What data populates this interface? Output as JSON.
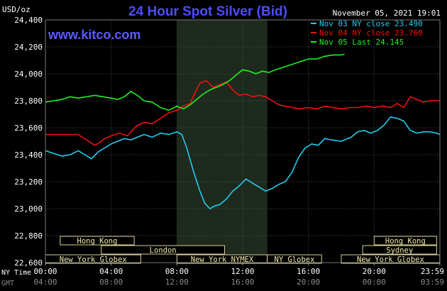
{
  "chart_data": {
    "type": "line",
    "title": "24 Hour Spot Silver (Bid)",
    "watermark": "www.kitco.com",
    "timestamp": "November 05, 2021 19:01",
    "y_unit": "USD/oz",
    "ylim": [
      22.6,
      24.4
    ],
    "y_ticks": [
      "24,400",
      "24,200",
      "24,000",
      "23,800",
      "23,600",
      "23,400",
      "23,200",
      "23,000",
      "22,800",
      "22,600"
    ],
    "x_label_ny": "NY Time",
    "x_label_gmt": "GMT",
    "x_ticks_ny": [
      "00:00",
      "04:00",
      "08:00",
      "12:00",
      "16:00",
      "20:00",
      "23:59"
    ],
    "x_ticks_gmt": [
      "04:00",
      "08:00",
      "12:00",
      "16:00",
      "20:00",
      "00:00",
      "03:59"
    ],
    "xlim_hours": [
      0,
      24
    ],
    "highlight_hours": [
      8.0,
      13.5
    ],
    "legend": [
      {
        "label": "Nov 03 NY close 23.490",
        "color": "#22ccee"
      },
      {
        "label": "Nov 04 NY close 23.760",
        "color": "#ee1111"
      },
      {
        "label": "Nov 05 Last 24.145",
        "color": "#22ee22"
      }
    ],
    "series": [
      {
        "name": "Nov 03",
        "color": "#22ccee",
        "points": [
          [
            0,
            23.43
          ],
          [
            0.5,
            23.41
          ],
          [
            1,
            23.39
          ],
          [
            1.5,
            23.4
          ],
          [
            2,
            23.43
          ],
          [
            2.4,
            23.4
          ],
          [
            2.8,
            23.37
          ],
          [
            3.2,
            23.42
          ],
          [
            3.6,
            23.45
          ],
          [
            4,
            23.48
          ],
          [
            4.4,
            23.5
          ],
          [
            4.8,
            23.52
          ],
          [
            5.2,
            23.51
          ],
          [
            5.6,
            23.53
          ],
          [
            6,
            23.55
          ],
          [
            6.5,
            23.53
          ],
          [
            7,
            23.56
          ],
          [
            7.5,
            23.55
          ],
          [
            8,
            23.57
          ],
          [
            8.3,
            23.55
          ],
          [
            8.6,
            23.45
          ],
          [
            9,
            23.28
          ],
          [
            9.4,
            23.13
          ],
          [
            9.7,
            23.04
          ],
          [
            10,
            23.0
          ],
          [
            10.3,
            23.02
          ],
          [
            10.6,
            23.03
          ],
          [
            11,
            23.07
          ],
          [
            11.4,
            23.13
          ],
          [
            11.8,
            23.17
          ],
          [
            12.2,
            23.22
          ],
          [
            12.6,
            23.19
          ],
          [
            13,
            23.16
          ],
          [
            13.4,
            23.13
          ],
          [
            13.8,
            23.15
          ],
          [
            14.2,
            23.18
          ],
          [
            14.6,
            23.2
          ],
          [
            15,
            23.27
          ],
          [
            15.4,
            23.38
          ],
          [
            15.8,
            23.45
          ],
          [
            16.2,
            23.48
          ],
          [
            16.6,
            23.47
          ],
          [
            17,
            23.52
          ],
          [
            17.4,
            23.51
          ],
          [
            18,
            23.5
          ],
          [
            18.6,
            23.53
          ],
          [
            19,
            23.57
          ],
          [
            19.4,
            23.58
          ],
          [
            19.8,
            23.56
          ],
          [
            20.2,
            23.58
          ],
          [
            20.6,
            23.62
          ],
          [
            21,
            23.68
          ],
          [
            21.4,
            23.67
          ],
          [
            21.8,
            23.65
          ],
          [
            22.2,
            23.58
          ],
          [
            22.6,
            23.56
          ],
          [
            23,
            23.57
          ],
          [
            23.4,
            23.57
          ],
          [
            23.8,
            23.56
          ],
          [
            24,
            23.55
          ]
        ]
      },
      {
        "name": "Nov 04",
        "color": "#ee1111",
        "points": [
          [
            0,
            23.55
          ],
          [
            0.5,
            23.55
          ],
          [
            1,
            23.55
          ],
          [
            1.5,
            23.55
          ],
          [
            2,
            23.55
          ],
          [
            2.5,
            23.51
          ],
          [
            3,
            23.47
          ],
          [
            3.3,
            23.49
          ],
          [
            3.6,
            23.52
          ],
          [
            4,
            23.54
          ],
          [
            4.5,
            23.56
          ],
          [
            5,
            23.54
          ],
          [
            5.5,
            23.61
          ],
          [
            6,
            23.64
          ],
          [
            6.5,
            23.63
          ],
          [
            7,
            23.67
          ],
          [
            7.5,
            23.71
          ],
          [
            8,
            23.73
          ],
          [
            8.4,
            23.76
          ],
          [
            8.8,
            23.78
          ],
          [
            9.1,
            23.86
          ],
          [
            9.4,
            23.93
          ],
          [
            9.8,
            23.95
          ],
          [
            10.2,
            23.9
          ],
          [
            10.6,
            23.92
          ],
          [
            11,
            23.94
          ],
          [
            11.4,
            23.88
          ],
          [
            11.8,
            23.84
          ],
          [
            12.2,
            23.85
          ],
          [
            12.6,
            23.83
          ],
          [
            13,
            23.84
          ],
          [
            13.4,
            23.83
          ],
          [
            13.8,
            23.8
          ],
          [
            14.2,
            23.77
          ],
          [
            14.6,
            23.76
          ],
          [
            15,
            23.75
          ],
          [
            15.5,
            23.74
          ],
          [
            16,
            23.75
          ],
          [
            16.5,
            23.74
          ],
          [
            17,
            23.76
          ],
          [
            17.5,
            23.75
          ],
          [
            18,
            23.74
          ],
          [
            18.5,
            23.75
          ],
          [
            19,
            23.75
          ],
          [
            19.5,
            23.76
          ],
          [
            20,
            23.75
          ],
          [
            20.5,
            23.76
          ],
          [
            21,
            23.75
          ],
          [
            21.4,
            23.78
          ],
          [
            21.8,
            23.75
          ],
          [
            22.2,
            23.83
          ],
          [
            22.6,
            23.81
          ],
          [
            23,
            23.79
          ],
          [
            23.4,
            23.8
          ],
          [
            24,
            23.8
          ]
        ]
      },
      {
        "name": "Nov 05",
        "color": "#22ee22",
        "points": [
          [
            0,
            23.79
          ],
          [
            0.5,
            23.8
          ],
          [
            1,
            23.81
          ],
          [
            1.5,
            23.83
          ],
          [
            2,
            23.82
          ],
          [
            2.5,
            23.83
          ],
          [
            3,
            23.84
          ],
          [
            3.5,
            23.83
          ],
          [
            4,
            23.82
          ],
          [
            4.4,
            23.81
          ],
          [
            4.8,
            23.83
          ],
          [
            5.2,
            23.87
          ],
          [
            5.6,
            23.84
          ],
          [
            6,
            23.8
          ],
          [
            6.5,
            23.79
          ],
          [
            7,
            23.75
          ],
          [
            7.5,
            23.73
          ],
          [
            8,
            23.76
          ],
          [
            8.4,
            23.74
          ],
          [
            8.8,
            23.77
          ],
          [
            9.2,
            23.81
          ],
          [
            9.6,
            23.85
          ],
          [
            10,
            23.88
          ],
          [
            10.4,
            23.9
          ],
          [
            10.8,
            23.92
          ],
          [
            11.2,
            23.95
          ],
          [
            11.6,
            23.99
          ],
          [
            12,
            24.03
          ],
          [
            12.4,
            24.02
          ],
          [
            12.8,
            24.0
          ],
          [
            13.2,
            24.02
          ],
          [
            13.6,
            24.01
          ],
          [
            14,
            24.03
          ],
          [
            14.5,
            24.05
          ],
          [
            15,
            24.07
          ],
          [
            15.5,
            24.09
          ],
          [
            16,
            24.11
          ],
          [
            16.5,
            24.11
          ],
          [
            17,
            24.13
          ],
          [
            17.5,
            24.14
          ],
          [
            18,
            24.14
          ],
          [
            18.2,
            24.145
          ]
        ]
      }
    ],
    "session_rows": [
      [
        {
          "label": "Hong Kong",
          "start": 0.9,
          "end": 5.4
        },
        {
          "label": "Hong Kong",
          "start": 20.0,
          "end": 23.8
        }
      ],
      [
        {
          "label": "London",
          "start": 3.4,
          "end": 10.9
        },
        {
          "label": "Sydney",
          "start": 19.3,
          "end": 23.8
        }
      ],
      [
        {
          "label": "New York Globex",
          "start": 0.0,
          "end": 5.8
        },
        {
          "label": "New York NYMEX",
          "start": 8.0,
          "end": 13.5
        },
        {
          "label": "NY Globex",
          "start": 13.5,
          "end": 16.8
        },
        {
          "label": "New York Globex",
          "start": 18.0,
          "end": 23.99
        }
      ]
    ]
  }
}
